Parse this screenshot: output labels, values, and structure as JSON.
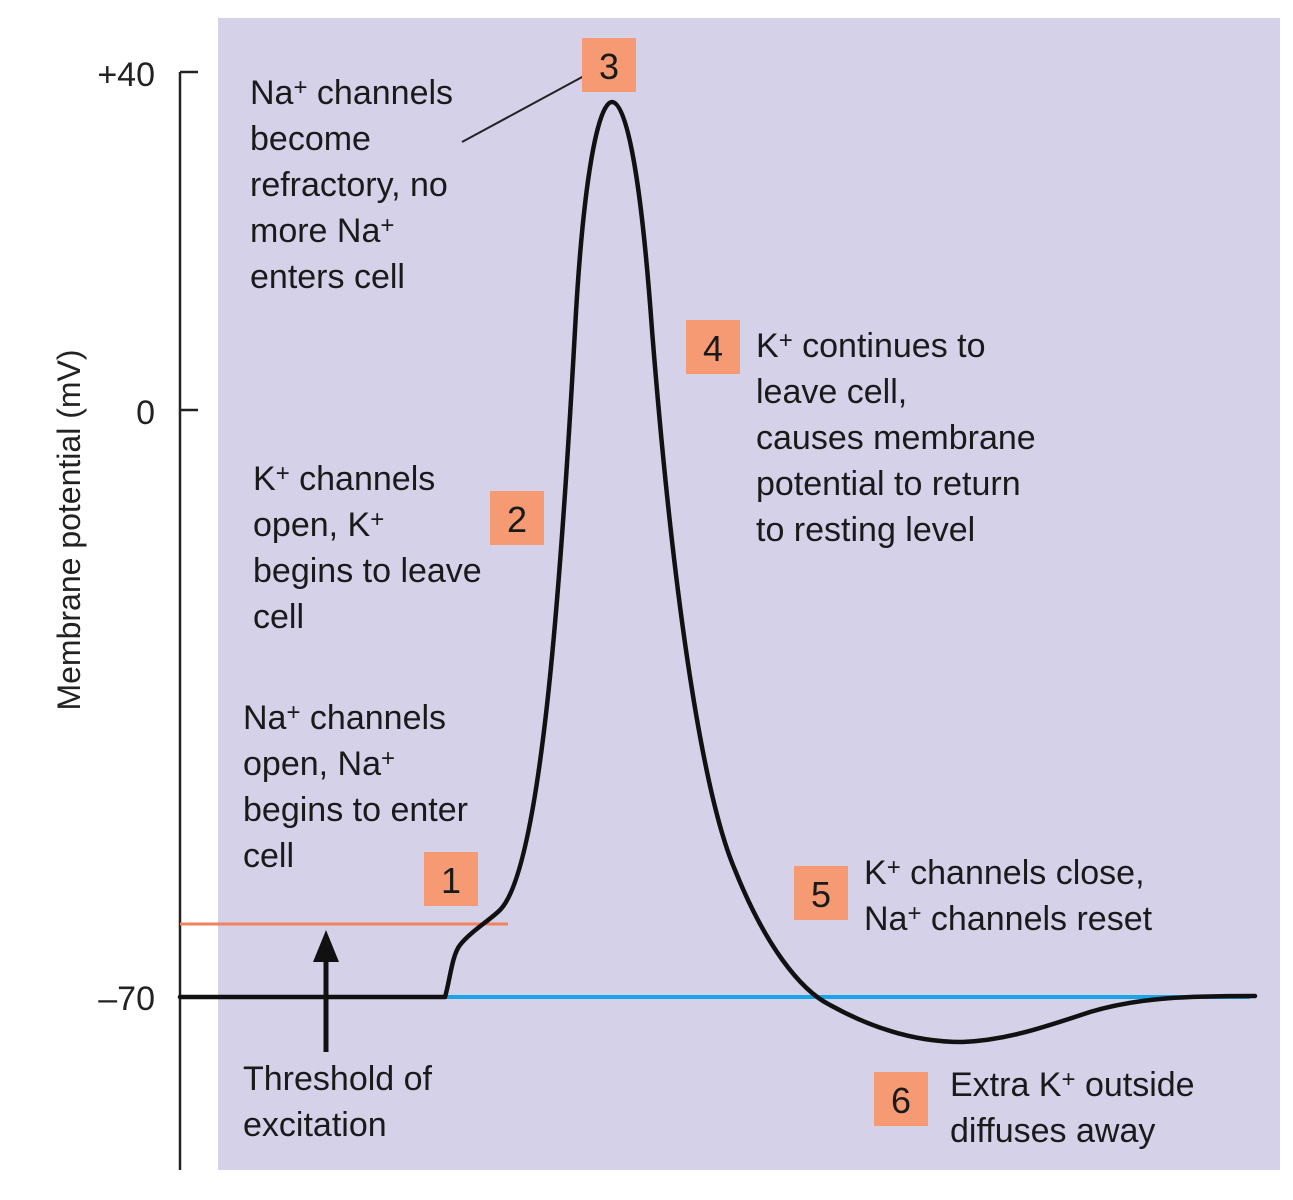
{
  "axis": {
    "y_title": "Membrane potential (mV)",
    "tick_top": "+40",
    "tick_mid": "0",
    "tick_bottom": "–70"
  },
  "colors": {
    "panel_bg": "#d4d1e9",
    "curve": "#111111",
    "threshold_line": "#f0825c",
    "resting_line": "#1aa6e6",
    "step_box": "#f59a72"
  },
  "steps": [
    {
      "number": "1",
      "lines": [
        "Na+ channels",
        "open, Na+",
        "begins to enter",
        "cell"
      ]
    },
    {
      "number": "2",
      "lines": [
        "K+ channels",
        "open, K+",
        "begins to leave",
        "cell"
      ]
    },
    {
      "number": "3",
      "lines": [
        "Na+ channels",
        "become",
        "refractory, no",
        "more Na+",
        "enters cell"
      ]
    },
    {
      "number": "4",
      "lines": [
        "K+ continues to",
        "leave cell,",
        "causes membrane",
        "potential to return",
        "to resting level"
      ]
    },
    {
      "number": "5",
      "lines": [
        "K+ channels close,",
        "Na+ channels reset"
      ]
    },
    {
      "number": "6",
      "lines": [
        "Extra K+ outside",
        "diffuses away"
      ]
    }
  ],
  "threshold_label": [
    "Threshold of",
    "excitation"
  ]
}
